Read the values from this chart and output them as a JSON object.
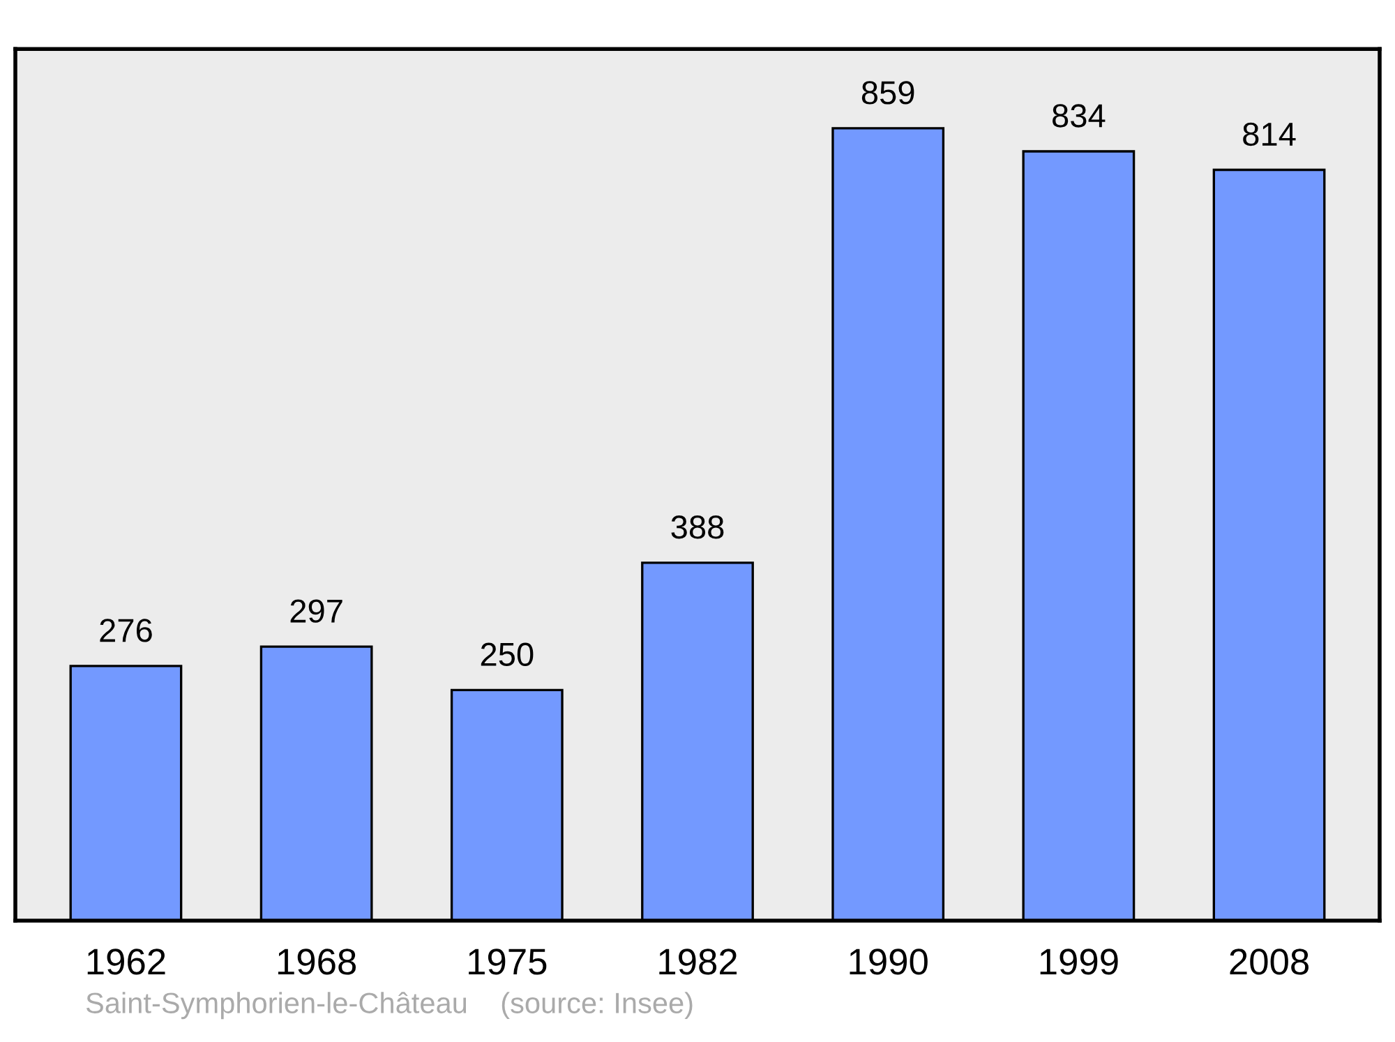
{
  "chart_data": {
    "type": "bar",
    "categories": [
      "1962",
      "1968",
      "1975",
      "1982",
      "1990",
      "1999",
      "2008"
    ],
    "values": [
      276,
      297,
      250,
      388,
      859,
      834,
      814
    ],
    "color": "#7399ff",
    "ylim": [
      0,
      945
    ],
    "data_labels": true,
    "tick_labels": "x",
    "grid": false,
    "legend": false,
    "annotations": [
      "Saint-Symphorien-le-Château    (source: Insee)"
    ]
  }
}
